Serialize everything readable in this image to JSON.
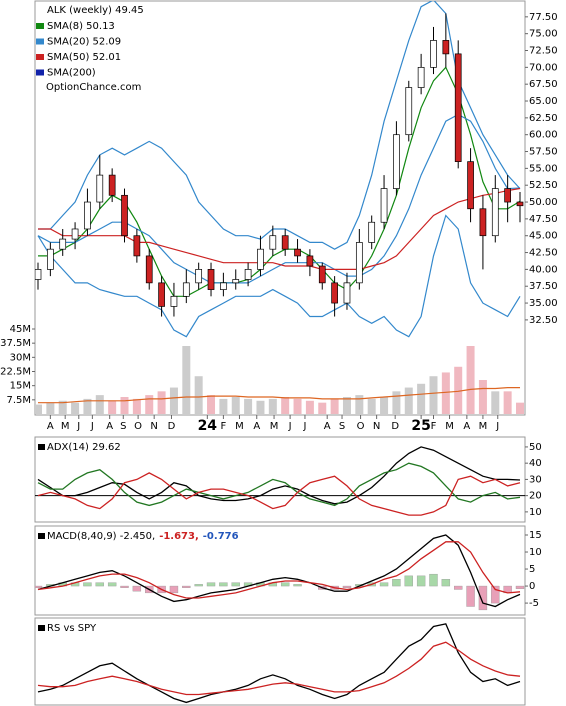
{
  "chart_data": [
    {
      "type": "candlestick",
      "title": "ALK (weekly) 49.45",
      "source": "OptionChance.com",
      "xlim": [
        0,
        39
      ],
      "xticks": [
        {
          "value": 1,
          "label": "A"
        },
        {
          "value": 2.2,
          "label": "M"
        },
        {
          "value": 3.3,
          "label": "J"
        },
        {
          "value": 4.4,
          "label": "J"
        },
        {
          "value": 5.8,
          "label": "A"
        },
        {
          "value": 6.9,
          "label": "S"
        },
        {
          "value": 8.1,
          "label": "O"
        },
        {
          "value": 9.4,
          "label": "N"
        },
        {
          "value": 10.8,
          "label": "D"
        },
        {
          "value": 13.7,
          "label": "24"
        },
        {
          "value": 15.0,
          "label": "F"
        },
        {
          "value": 16.3,
          "label": "M"
        },
        {
          "value": 17.7,
          "label": "A"
        },
        {
          "value": 19.1,
          "label": "M"
        },
        {
          "value": 20.4,
          "label": "J"
        },
        {
          "value": 21.6,
          "label": "J"
        },
        {
          "value": 23.4,
          "label": "A"
        },
        {
          "value": 24.6,
          "label": "S"
        },
        {
          "value": 26.1,
          "label": "O"
        },
        {
          "value": 27.4,
          "label": "N"
        },
        {
          "value": 28.9,
          "label": "D"
        },
        {
          "value": 31.0,
          "label": "25"
        },
        {
          "value": 32.0,
          "label": "F"
        },
        {
          "value": 33.3,
          "label": "M"
        },
        {
          "value": 34.7,
          "label": "A"
        },
        {
          "value": 36.0,
          "label": "M"
        },
        {
          "value": 37.2,
          "label": "J"
        }
      ],
      "ylim": [
        31,
        80
      ],
      "yticks": [
        {
          "value": 32.5,
          "label": "32.50"
        },
        {
          "value": 35,
          "label": "35.00"
        },
        {
          "value": 37.5,
          "label": "37.50"
        },
        {
          "value": 40,
          "label": "40.00"
        },
        {
          "value": 42.5,
          "label": "42.50"
        },
        {
          "value": 45,
          "label": "45.00"
        },
        {
          "value": 47.5,
          "label": "47.50"
        },
        {
          "value": 50,
          "label": "50.00"
        },
        {
          "value": 52.5,
          "label": "52.50"
        },
        {
          "value": 55,
          "label": "55.00"
        },
        {
          "value": 57.5,
          "label": "57.50"
        },
        {
          "value": 60,
          "label": "60.00"
        },
        {
          "value": 62.5,
          "label": "62.50"
        },
        {
          "value": 65,
          "label": "65.00"
        },
        {
          "value": 67.5,
          "label": "67.50"
        },
        {
          "value": 70,
          "label": "70.00"
        },
        {
          "value": 72.5,
          "label": "72.50"
        },
        {
          "value": 75,
          "label": "75.00"
        },
        {
          "value": 77.5,
          "label": "77.50"
        }
      ],
      "up_color": "#ffffff",
      "down_color": "#cc2222",
      "open": [
        38.5,
        40,
        43,
        44.5,
        46,
        50,
        54,
        51,
        45,
        42,
        38,
        34.5,
        36,
        38,
        40,
        37,
        38,
        38.5,
        40,
        43,
        45,
        43,
        42,
        40.5,
        38,
        35,
        38,
        44,
        47,
        52,
        60,
        67,
        70,
        74,
        72,
        56,
        49,
        45,
        52,
        50
      ],
      "high": [
        41,
        44,
        46,
        47,
        52,
        57,
        55,
        52,
        46,
        43,
        39,
        38,
        40,
        41,
        41,
        39.5,
        40,
        41,
        45,
        46.5,
        46,
        44.5,
        43,
        41,
        39,
        39.5,
        46,
        48,
        54,
        62,
        68,
        72,
        76,
        78,
        74,
        58,
        51,
        54,
        54,
        51.5
      ],
      "low": [
        37,
        39,
        42,
        43,
        45,
        49,
        50,
        44,
        41,
        37,
        33,
        33,
        35,
        37,
        36,
        36,
        37,
        37.5,
        39,
        42,
        42,
        41,
        39,
        37,
        33,
        34,
        37,
        43,
        46,
        51,
        59,
        66,
        69,
        70,
        55,
        47,
        40,
        44,
        47,
        47
      ],
      "close": [
        40,
        43,
        44.5,
        46,
        50,
        54,
        51,
        45,
        42,
        38,
        34.5,
        36,
        38,
        40,
        37,
        38,
        38.5,
        40,
        43,
        45,
        43,
        42,
        40.5,
        38,
        35,
        38,
        44,
        47,
        52,
        60,
        67,
        70,
        74,
        72,
        56,
        49,
        45,
        52,
        50,
        49.45
      ],
      "series": [
        {
          "name": "SMA(8) 50.13",
          "color": "#118811",
          "values": [
            42,
            42,
            43,
            44,
            46,
            49,
            51,
            50,
            47,
            43,
            39,
            36,
            36,
            37,
            38,
            38,
            38,
            38.5,
            40,
            42,
            43,
            43,
            42,
            40,
            38,
            37,
            39,
            42,
            46,
            51,
            58,
            64,
            68,
            70,
            66,
            60,
            53,
            49,
            49,
            50.13
          ]
        },
        {
          "name": "SMA(20) 52.09",
          "color": "#3388cc",
          "values": [
            45,
            44,
            44,
            44,
            45,
            46,
            47,
            47,
            46,
            45,
            43,
            41,
            40,
            39,
            38,
            38,
            38,
            38,
            39,
            40,
            41,
            41,
            41,
            41,
            40,
            39,
            39,
            40,
            42,
            45,
            49,
            54,
            58,
            62,
            63,
            62,
            59,
            55,
            52,
            52.09
          ]
        },
        {
          "name": "SMA(50) 52.01",
          "color": "#cc2222",
          "values": [
            46,
            46,
            45,
            45,
            45,
            45,
            45,
            45,
            44,
            44,
            43.5,
            43,
            42.5,
            42,
            41.5,
            41,
            41,
            41,
            41,
            41,
            40.5,
            40.5,
            40.5,
            40,
            40,
            40,
            40,
            40.5,
            41,
            42,
            44,
            46,
            48,
            49,
            50,
            50.5,
            51,
            51.3,
            51.7,
            52.01
          ]
        },
        {
          "name": "SMA(200)",
          "color": "#1122aa",
          "values": []
        }
      ],
      "bands": {
        "color": "#3388cc",
        "upper": [
          46,
          46,
          48,
          50,
          54,
          57,
          58,
          57,
          58,
          59,
          58,
          56,
          54,
          50,
          48,
          46,
          45,
          45,
          44.5,
          46,
          46,
          45,
          44,
          44,
          43,
          44,
          48,
          54,
          62,
          68,
          74,
          79,
          80,
          78,
          68,
          64,
          60,
          57,
          54,
          52
        ],
        "lower": [
          45,
          42,
          40,
          38,
          38,
          37,
          36.5,
          36,
          36,
          35,
          34,
          31,
          30,
          33,
          34,
          35,
          36,
          36,
          36,
          37,
          36,
          35,
          33,
          33,
          34,
          35,
          33,
          32,
          33,
          31,
          30,
          33,
          42,
          48,
          46,
          38,
          35,
          34,
          33,
          36
        ]
      },
      "volume": {
        "up_color": "#cccccc",
        "down_color": "#f0b8c0",
        "ma_color": "#dd6622",
        "ylim": [
          0,
          45
        ],
        "yticks": [
          {
            "value": 7.5,
            "label": "7.5M"
          },
          {
            "value": 15,
            "label": "15M"
          },
          {
            "value": 22.5,
            "label": "22.5M"
          },
          {
            "value": 30,
            "label": "30M"
          },
          {
            "value": 37.5,
            "label": "37.5M"
          },
          {
            "value": 45,
            "label": "45M"
          }
        ],
        "values": [
          5,
          6,
          7,
          6,
          8,
          10,
          7,
          9,
          8,
          10,
          12,
          14,
          36,
          20,
          10,
          8,
          9,
          8,
          7,
          8,
          9,
          8,
          7,
          6,
          8,
          9,
          10,
          8,
          9,
          12,
          14,
          16,
          20,
          22,
          25,
          36,
          18,
          12,
          12,
          6
        ],
        "ma": [
          6,
          6,
          6,
          6.5,
          7,
          7,
          7,
          7,
          7.5,
          8,
          8,
          8.5,
          9,
          9,
          9.5,
          9.5,
          9.5,
          9,
          9,
          9,
          8.5,
          8.5,
          8.5,
          8,
          8,
          8,
          8,
          8.5,
          9,
          9.5,
          10,
          10.5,
          11,
          11.5,
          12,
          13,
          13.5,
          13.5,
          14,
          14
        ]
      }
    },
    {
      "type": "line",
      "label": "ADX(14) 29.62",
      "xlim": [
        0,
        39
      ],
      "ylim": [
        5,
        55.5
      ],
      "yticks": [
        10,
        20,
        30,
        40,
        50
      ],
      "hline": 20,
      "series": [
        {
          "color": "#000000",
          "values": [
            30,
            25,
            20,
            20,
            22,
            25,
            28,
            27,
            22,
            18,
            22,
            28,
            26,
            20,
            18,
            17,
            17,
            18,
            20,
            24,
            26,
            24,
            20,
            17,
            15,
            16,
            20,
            25,
            32,
            40,
            46,
            50,
            48,
            44,
            40,
            36,
            32,
            30,
            30,
            29.62
          ]
        },
        {
          "color": "#227722",
          "values": [
            28,
            24,
            24,
            30,
            34,
            36,
            30,
            22,
            16,
            14,
            16,
            20,
            24,
            22,
            20,
            18,
            20,
            22,
            26,
            30,
            28,
            22,
            18,
            16,
            14,
            18,
            26,
            30,
            34,
            36,
            40,
            38,
            34,
            26,
            18,
            16,
            20,
            22,
            18,
            19
          ]
        },
        {
          "color": "#cc2222",
          "values": [
            20,
            22,
            20,
            18,
            14,
            12,
            18,
            28,
            30,
            34,
            30,
            24,
            18,
            22,
            24,
            24,
            22,
            20,
            16,
            12,
            14,
            22,
            28,
            30,
            32,
            26,
            18,
            14,
            12,
            10,
            8,
            8,
            10,
            14,
            30,
            32,
            28,
            30,
            26,
            28
          ]
        }
      ]
    },
    {
      "type": "line",
      "label": "MACD(8,40,9) -2.450,",
      "label2": "-1.673,",
      "label2_color": "#cc2222",
      "label3": "-0.776",
      "label3_color": "#2255bb",
      "xlim": [
        0,
        39
      ],
      "ylim": [
        -8.5,
        17.35
      ],
      "yticks": [
        -5,
        0,
        5,
        10,
        15
      ],
      "histogram": {
        "pos_color": "#a8d8a8",
        "neg_color": "#e8a0b8",
        "values": [
          -0.5,
          0.5,
          1,
          1,
          1,
          1,
          1,
          -0.5,
          -1.5,
          -2,
          -2,
          -2,
          -0.5,
          0.5,
          1,
          1,
          1,
          1,
          1,
          1,
          1,
          0.5,
          0,
          -1,
          -1,
          -0.5,
          0.5,
          1,
          1,
          2,
          3,
          3,
          3.5,
          2,
          -1,
          -6,
          -7,
          -5,
          -2,
          -0.776
        ]
      },
      "series": [
        {
          "color": "#000000",
          "values": [
            -1,
            0,
            1,
            2,
            3,
            4,
            4.5,
            3,
            1,
            -1,
            -3,
            -4.5,
            -4,
            -3,
            -2,
            -1.5,
            -1,
            0,
            1,
            2,
            2.5,
            2,
            1,
            -0.5,
            -1.5,
            -1.5,
            0,
            1.5,
            3,
            5,
            8,
            11,
            14,
            15,
            12,
            4,
            -5,
            -6,
            -4,
            -2.45
          ]
        },
        {
          "color": "#cc2222",
          "values": [
            -1,
            -0.5,
            0,
            1,
            2,
            3,
            3.5,
            3.5,
            2.5,
            1,
            -1,
            -2.5,
            -3.5,
            -3.5,
            -3,
            -2.5,
            -2,
            -1,
            0,
            1,
            1.5,
            1.5,
            1,
            0.5,
            -0.5,
            -1,
            -0.5,
            0.5,
            2,
            3,
            5,
            8,
            10.5,
            13,
            13,
            10,
            4,
            -1,
            -2,
            -1.673
          ]
        }
      ]
    },
    {
      "type": "line",
      "label": "RS vs SPY",
      "xlim": [
        0,
        39
      ],
      "ylim": [
        10,
        75
      ],
      "series": [
        {
          "color": "#000000",
          "values": [
            20,
            22,
            25,
            30,
            35,
            40,
            42,
            36,
            30,
            25,
            20,
            15,
            12,
            15,
            18,
            20,
            22,
            25,
            30,
            33,
            30,
            25,
            22,
            18,
            15,
            18,
            25,
            30,
            35,
            45,
            55,
            60,
            70,
            72,
            50,
            35,
            28,
            30,
            25,
            28
          ]
        },
        {
          "color": "#cc2222",
          "values": [
            25,
            24,
            24,
            25,
            28,
            30,
            32,
            30,
            28,
            25,
            22,
            20,
            18,
            18,
            19,
            20,
            21,
            22,
            24,
            26,
            27,
            26,
            24,
            22,
            20,
            20,
            21,
            24,
            27,
            32,
            38,
            45,
            55,
            58,
            52,
            45,
            40,
            36,
            33,
            32
          ]
        }
      ]
    }
  ]
}
